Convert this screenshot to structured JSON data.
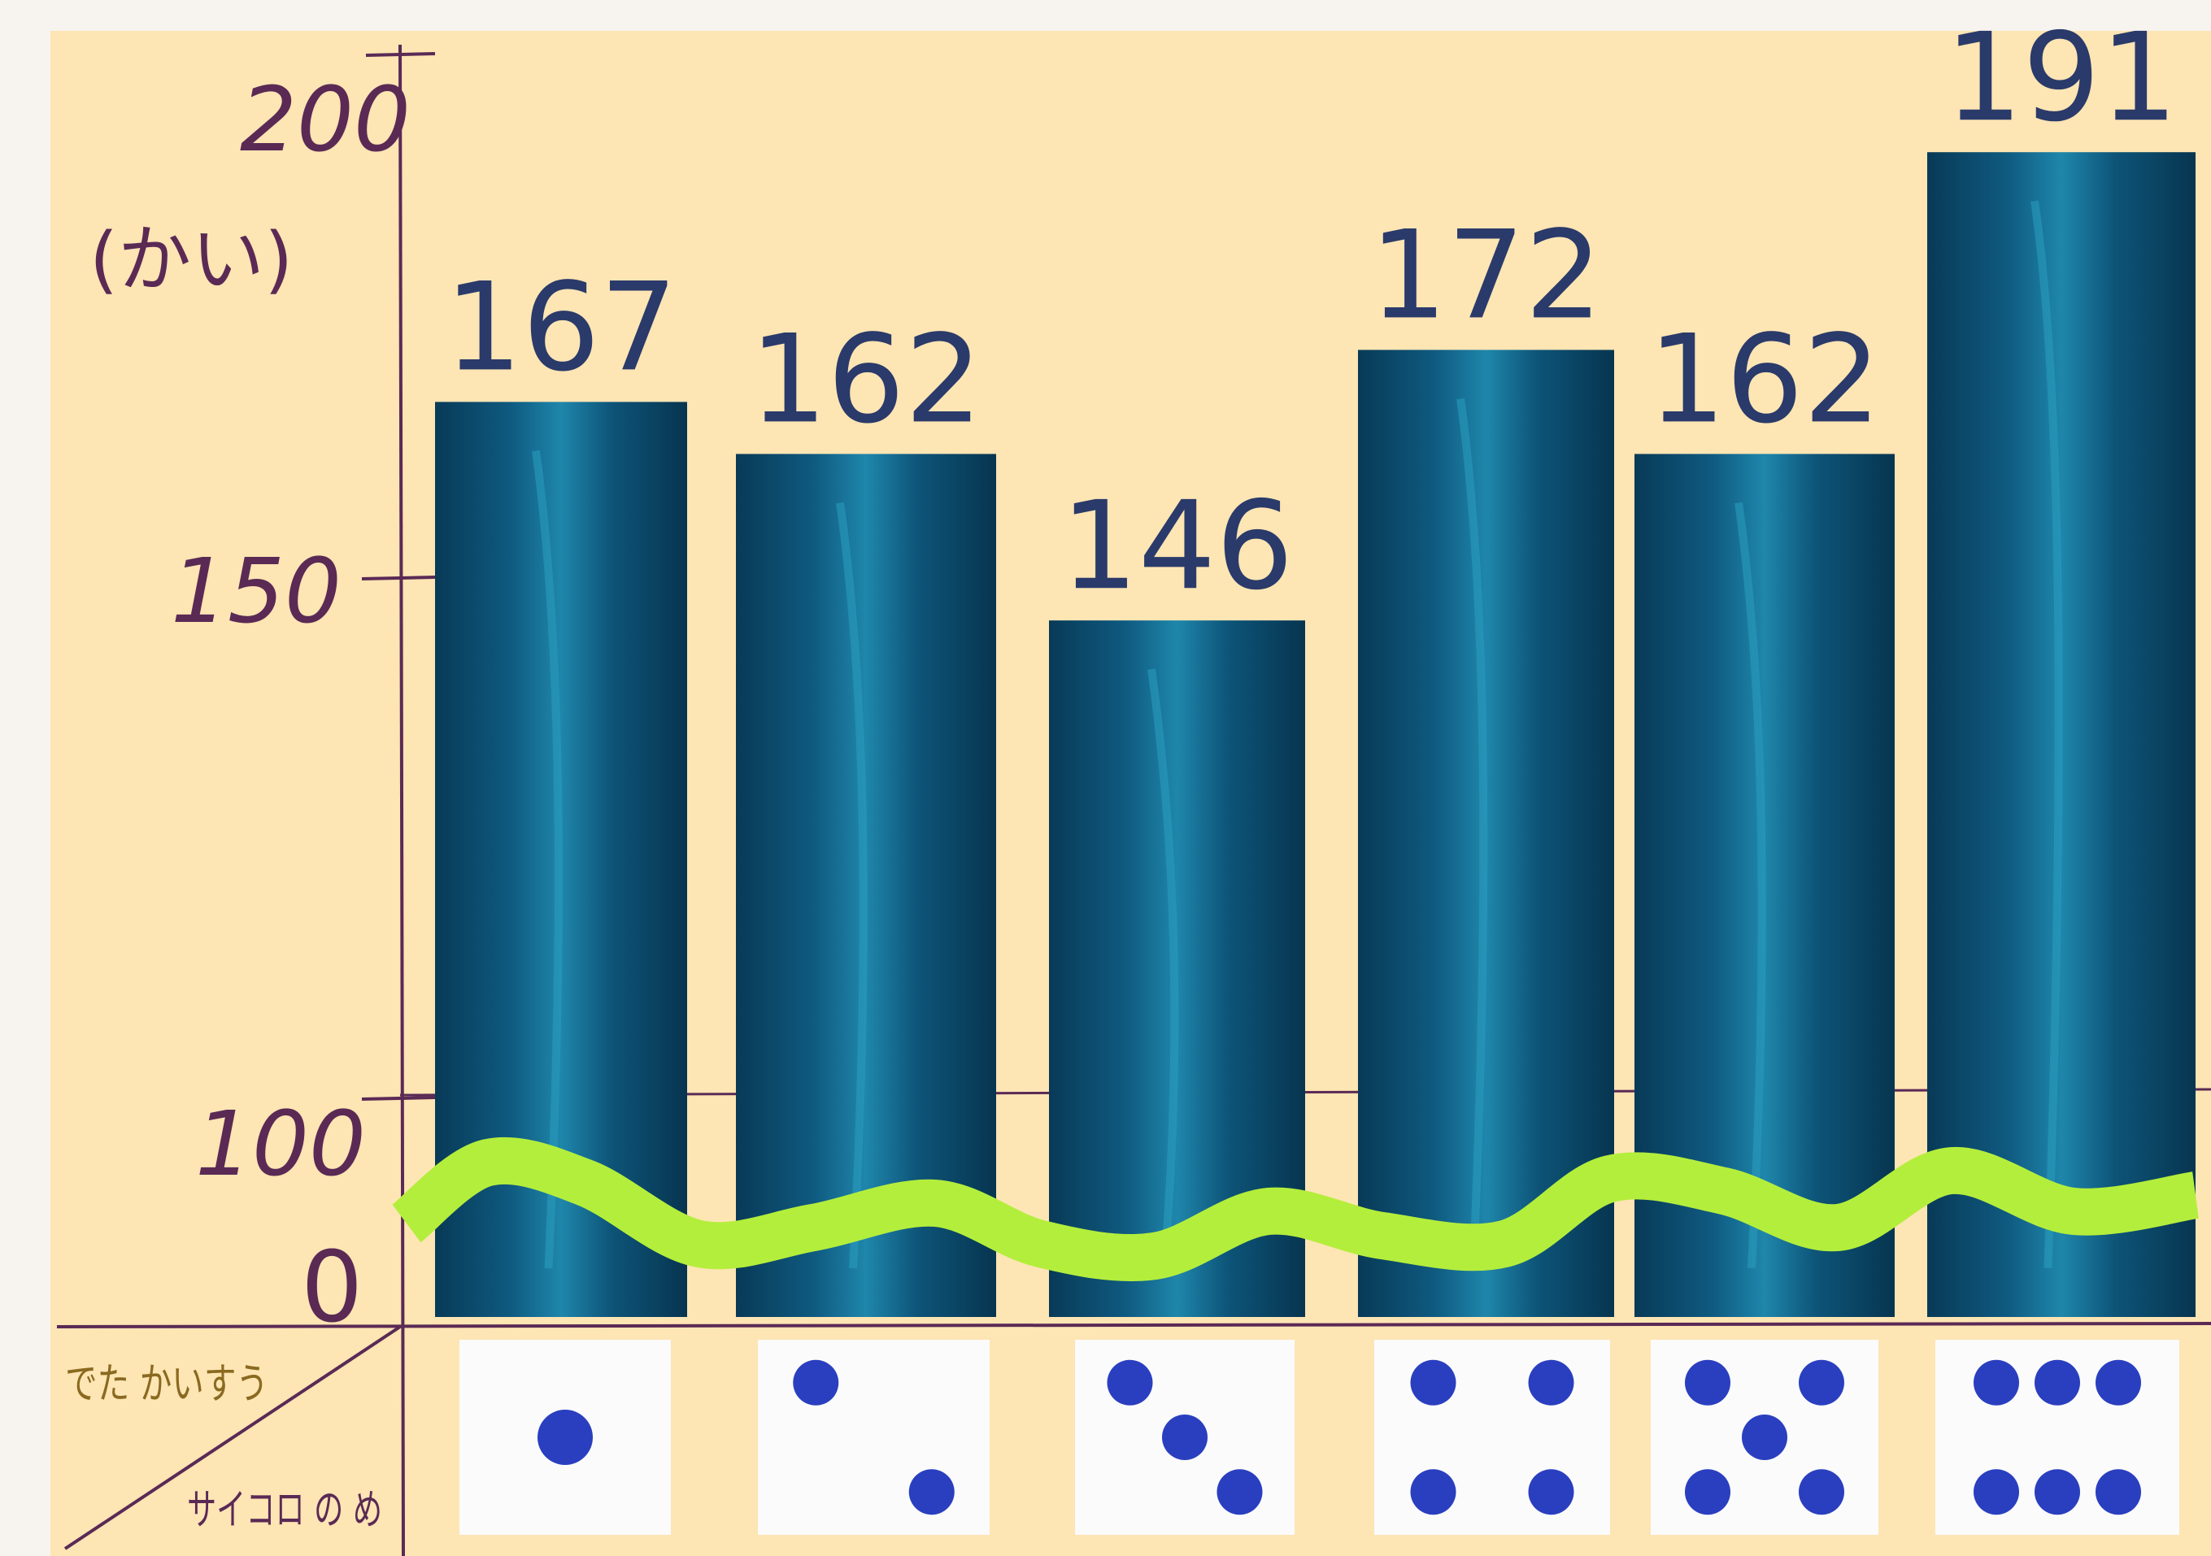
{
  "chart_data": {
    "type": "bar",
    "title": "",
    "ylabel": "(かい)",
    "ylim": [
      0,
      200
    ],
    "yticks": [
      "0",
      "100",
      "150",
      "200"
    ],
    "axis_break": true,
    "categories": [
      "1",
      "2",
      "3",
      "4",
      "5",
      "6"
    ],
    "values": [
      167,
      162,
      146,
      172,
      162,
      191
    ],
    "value_labels": [
      "167",
      "162",
      "146",
      "172",
      "162",
      "191"
    ],
    "corner_label": {
      "top": "でた かいすう",
      "bottom": "サイコロ の め"
    },
    "colors": {
      "bar": "#0b4a6b",
      "bar_highlight": "#2a9ec0",
      "break": "#b4ee3c",
      "paper": "#fde5b4",
      "ink": "#5a2a55",
      "numbers": "#2a3a6a",
      "pip": "#2a3fbf"
    }
  }
}
